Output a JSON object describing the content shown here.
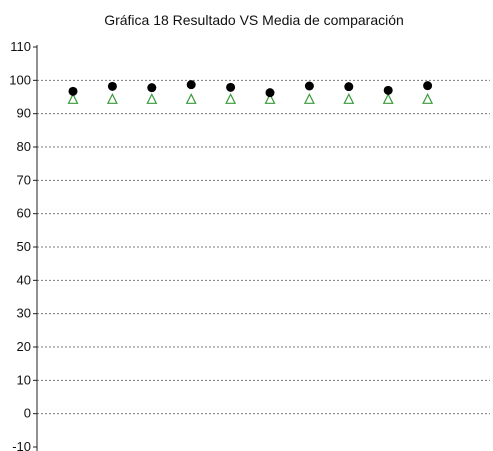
{
  "chart_data": {
    "type": "scatter",
    "title": "Gráfica 18 Resultado VS Media de comparación",
    "xlabel": "",
    "ylabel": "",
    "ylim": [
      -10,
      110
    ],
    "yticks": [
      "110",
      "100",
      "90",
      "80",
      "70",
      "60",
      "50",
      "40",
      "30",
      "20",
      "10",
      "0",
      "-10"
    ],
    "grid": true,
    "legend": "none",
    "x": [
      1,
      2,
      3,
      4,
      5,
      6,
      7,
      8,
      9,
      10
    ],
    "series": [
      {
        "marker": "filled-circle",
        "color": "#000000",
        "values": [
          96.7,
          98.2,
          97.8,
          98.7,
          97.9,
          96.3,
          98.3,
          98.1,
          97.0,
          98.4
        ]
      },
      {
        "marker": "open-triangle",
        "color": "#3a9a3a",
        "values": [
          94.3,
          94.3,
          94.3,
          94.3,
          94.3,
          94.3,
          94.3,
          94.3,
          94.3,
          94.3
        ]
      }
    ]
  }
}
